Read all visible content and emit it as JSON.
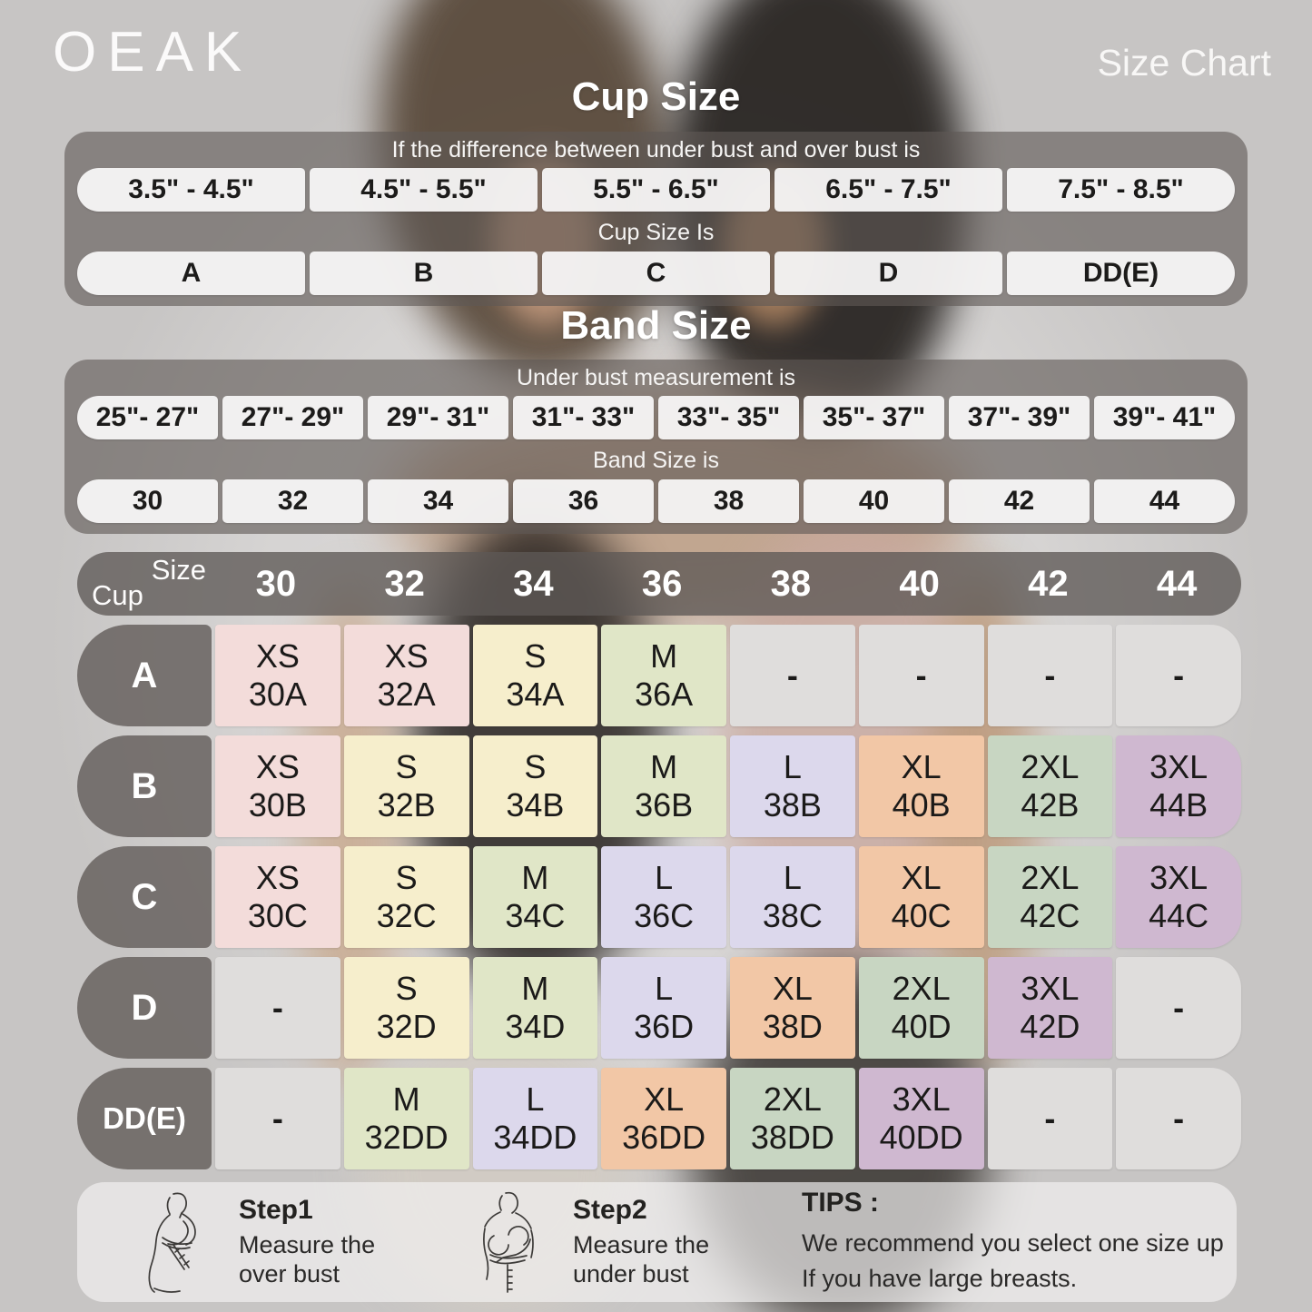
{
  "brand": {
    "logo": "OEAK",
    "page_label": "Size Chart"
  },
  "cup_size_section": {
    "title": "Cup Size",
    "condition_label": "If the  difference between under bust and over bust is",
    "ranges": [
      "3.5\" - 4.5\"",
      "4.5\" - 5.5\"",
      "5.5\" - 6.5\"",
      "6.5\" - 7.5\"",
      "7.5\" - 8.5\""
    ],
    "result_label": "Cup Size Is",
    "cups": [
      "A",
      "B",
      "C",
      "D",
      "DD(E)"
    ]
  },
  "band_size_section": {
    "title": "Band Size",
    "condition_label": "Under bust measurement is",
    "ranges": [
      "25\"- 27\"",
      "27\"- 29\"",
      "29\"- 31\"",
      "31\"- 33\"",
      "33\"- 35\"",
      "35\"- 37\"",
      "37\"- 39\"",
      "39\"- 41\""
    ],
    "result_label": "Band Size is",
    "bands": [
      "30",
      "32",
      "34",
      "36",
      "38",
      "40",
      "42",
      "44"
    ]
  },
  "size_table": {
    "corner": {
      "top": "Size",
      "bottom": "Cup"
    },
    "columns": [
      "30",
      "32",
      "34",
      "36",
      "38",
      "40",
      "42",
      "44"
    ],
    "size_colors": {
      "XS": "#f3dcda",
      "S": "#f6eecc",
      "M": "#e0e6c7",
      "L": "#dcd8ec",
      "XL": "#f2c7a6",
      "2XL": "#c8d6c2",
      "3XL": "#cfb8d0",
      "-": "#dfdddc"
    },
    "rows": [
      {
        "cup": "A",
        "cells": [
          {
            "size": "XS",
            "code": "30A"
          },
          {
            "size": "XS",
            "code": "32A"
          },
          {
            "size": "S",
            "code": "34A"
          },
          {
            "size": "M",
            "code": "36A"
          },
          {
            "size": "-",
            "code": ""
          },
          {
            "size": "-",
            "code": ""
          },
          {
            "size": "-",
            "code": ""
          },
          {
            "size": "-",
            "code": ""
          }
        ]
      },
      {
        "cup": "B",
        "cells": [
          {
            "size": "XS",
            "code": "30B"
          },
          {
            "size": "S",
            "code": "32B"
          },
          {
            "size": "S",
            "code": "34B"
          },
          {
            "size": "M",
            "code": "36B"
          },
          {
            "size": "L",
            "code": "38B"
          },
          {
            "size": "XL",
            "code": "40B"
          },
          {
            "size": "2XL",
            "code": "42B"
          },
          {
            "size": "3XL",
            "code": "44B"
          }
        ]
      },
      {
        "cup": "C",
        "cells": [
          {
            "size": "XS",
            "code": "30C"
          },
          {
            "size": "S",
            "code": "32C"
          },
          {
            "size": "M",
            "code": "34C"
          },
          {
            "size": "L",
            "code": "36C"
          },
          {
            "size": "L",
            "code": "38C"
          },
          {
            "size": "XL",
            "code": "40C"
          },
          {
            "size": "2XL",
            "code": "42C"
          },
          {
            "size": "3XL",
            "code": "44C"
          }
        ]
      },
      {
        "cup": "D",
        "cells": [
          {
            "size": "-",
            "code": ""
          },
          {
            "size": "S",
            "code": "32D"
          },
          {
            "size": "M",
            "code": "34D"
          },
          {
            "size": "L",
            "code": "36D"
          },
          {
            "size": "XL",
            "code": "38D"
          },
          {
            "size": "2XL",
            "code": "40D"
          },
          {
            "size": "3XL",
            "code": "42D"
          },
          {
            "size": "-",
            "code": ""
          }
        ]
      },
      {
        "cup": "DD(E)",
        "cells": [
          {
            "size": "-",
            "code": ""
          },
          {
            "size": "M",
            "code": "32DD"
          },
          {
            "size": "L",
            "code": "34DD"
          },
          {
            "size": "XL",
            "code": "36DD"
          },
          {
            "size": "2XL",
            "code": "38DD"
          },
          {
            "size": "3XL",
            "code": "40DD"
          },
          {
            "size": "-",
            "code": ""
          },
          {
            "size": "-",
            "code": ""
          }
        ]
      }
    ]
  },
  "footer": {
    "steps": [
      {
        "title": "Step1",
        "line1": "Measure the",
        "line2": "over bust"
      },
      {
        "title": "Step2",
        "line1": "Measure the",
        "line2": "under bust"
      }
    ],
    "tips": {
      "title": "TIPS :",
      "line1": "We recommend you select one size up",
      "line2": "If you have large breasts."
    }
  }
}
